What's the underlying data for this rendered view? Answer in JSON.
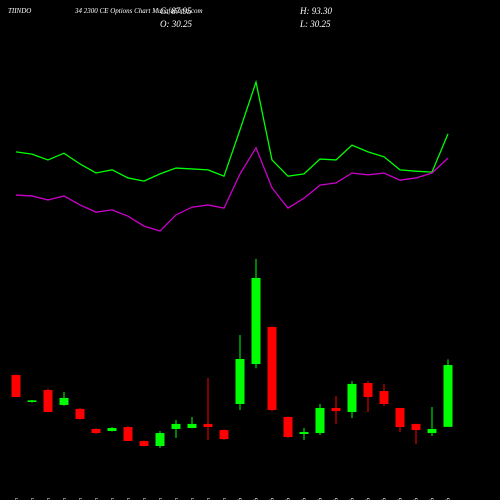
{
  "header": {
    "symbol": "TIINDO",
    "title": "34 2300 CE Options Chart MunafaSutra.com",
    "close": "C: 87.95",
    "high": "H: 93.30",
    "open": "O: 30.25",
    "low": "L: 30.25"
  },
  "chart_data": {
    "type": "candlestick",
    "categories": [
      "07 Jan",
      "08 Jan",
      "16 Jan",
      "17 Jan",
      "20 Jan",
      "21 Jan",
      "22 Jan",
      "23 Jan",
      "24 Jan",
      "27 Jan",
      "28 Jan",
      "29 Jan",
      "30 Jan",
      "31 Jan",
      "01 Feb",
      "03 Feb",
      "04 Feb",
      "05 Feb",
      "06 Feb",
      "07 Feb",
      "10 Feb",
      "11 Feb",
      "12 Feb",
      "13 Feb",
      "14 Feb",
      "17 Feb",
      "18 Feb",
      "20 Feb"
    ],
    "open": [
      78.7,
      53.5,
      64.7,
      50.7,
      47,
      28.3,
      26.4,
      30.1,
      17,
      12.4,
      28.3,
      29.2,
      33,
      27.3,
      51.6,
      88.9,
      123.5,
      39.5,
      23.6,
      24.5,
      47.9,
      44.1,
      71.2,
      63.7,
      47.9,
      33,
      24.5,
      30.25
    ],
    "high": [
      79,
      55.5,
      66,
      62.8,
      48,
      29,
      30,
      31,
      17.5,
      26.4,
      36.7,
      39.5,
      75.9,
      28,
      116,
      187,
      124,
      40,
      29.2,
      51.6,
      59,
      73,
      73,
      70.3,
      48,
      33,
      48.8,
      93.3
    ],
    "low": [
      58,
      53,
      44,
      50,
      37,
      23.5,
      26,
      17,
      12,
      10.5,
      19.9,
      29,
      18,
      18,
      46,
      85,
      45,
      20,
      18,
      22.7,
      33,
      38.5,
      44,
      49.7,
      25.5,
      14,
      21.7,
      30.25
    ],
    "close": [
      58.1,
      55,
      44.1,
      57.2,
      37.6,
      24.5,
      29.2,
      17.1,
      12.4,
      24.5,
      33,
      33,
      30.1,
      18.9,
      93.6,
      169.2,
      46,
      20.8,
      25.5,
      47.9,
      45,
      70.3,
      58.1,
      51.6,
      30.1,
      27.3,
      28.3,
      87.95
    ],
    "up_color": "#00ff00",
    "down_color": "#ff0000",
    "ylim": [
      -10,
      200
    ],
    "y2lim": [
      0,
      100
    ],
    "lines": [
      {
        "color": "#00ff00",
        "axis": "y2",
        "values": [
          70.7,
          70.2,
          68.9,
          70.4,
          68,
          66,
          66.7,
          64.9,
          64.2,
          65.8,
          67.1,
          66.9,
          66.7,
          65.3,
          75.6,
          86.2,
          68.9,
          65.3,
          65.8,
          69.1,
          68.9,
          72.2,
          70.7,
          69.6,
          66.7,
          66.4,
          66.2,
          74.7
        ]
      },
      {
        "color": "#cc00cc",
        "axis": "y2",
        "values": [
          61.1,
          60.9,
          60,
          60.9,
          58.9,
          57.3,
          57.8,
          56.4,
          54.2,
          53.1,
          56.7,
          58.4,
          58.9,
          58.2,
          65.8,
          71.6,
          62.7,
          58.2,
          60.4,
          63.3,
          63.8,
          66,
          65.6,
          66,
          64.4,
          64.9,
          66,
          69.3
        ]
      }
    ]
  }
}
